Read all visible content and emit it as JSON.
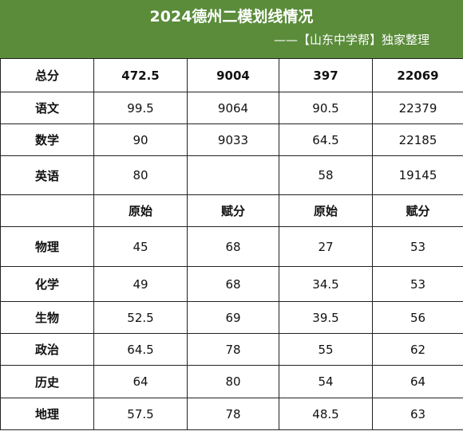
{
  "header": {
    "title": "2024德州二模划线情况",
    "subtitle": "——【山东中学帮】独家整理"
  },
  "total_row": {
    "label": "总分",
    "values": [
      "472.5",
      "9004",
      "397",
      "22069"
    ]
  },
  "score_rows": [
    {
      "label": "语文",
      "values": [
        "99.5",
        "9064",
        "90.5",
        "22379"
      ]
    },
    {
      "label": "数学",
      "values": [
        "90",
        "9033",
        "64.5",
        "22185"
      ]
    },
    {
      "label": "英语",
      "values": [
        "80",
        "",
        "58",
        "19145"
      ]
    }
  ],
  "sub_header": {
    "label": "",
    "values": [
      "原始",
      "赋分",
      "原始",
      "赋分"
    ]
  },
  "elective_rows": [
    {
      "label": "物理",
      "values": [
        "45",
        "68",
        "27",
        "53"
      ]
    },
    {
      "label": "化学",
      "values": [
        "49",
        "68",
        "34.5",
        "53"
      ]
    },
    {
      "label": "生物",
      "values": [
        "52.5",
        "69",
        "39.5",
        "56"
      ]
    },
    {
      "label": "政治",
      "values": [
        "64.5",
        "78",
        "55",
        "62"
      ]
    },
    {
      "label": "历史",
      "values": [
        "64",
        "80",
        "54",
        "64"
      ]
    },
    {
      "label": "地理",
      "values": [
        "57.5",
        "78",
        "48.5",
        "63"
      ]
    }
  ]
}
